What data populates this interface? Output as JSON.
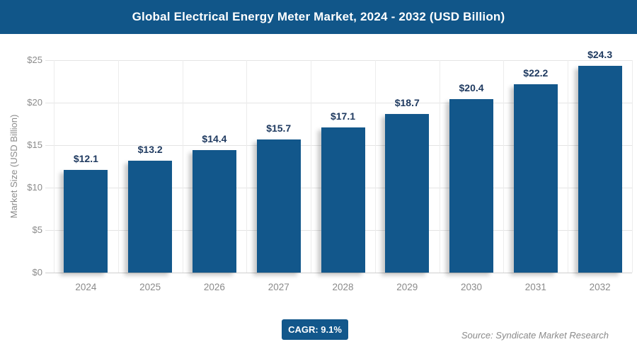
{
  "header": {
    "title": "Global Electrical Energy Meter Market, 2024 - 2032 (USD Billion)"
  },
  "chart_data": {
    "type": "bar",
    "title": "Global Electrical Energy Meter Market, 2024 - 2032 (USD Billion)",
    "categories": [
      "2024",
      "2025",
      "2026",
      "2027",
      "2028",
      "2029",
      "2030",
      "2031",
      "2032"
    ],
    "values": [
      12.1,
      13.2,
      14.4,
      15.7,
      17.1,
      18.7,
      20.4,
      22.2,
      24.3
    ],
    "value_labels": [
      "$12.1",
      "$13.2",
      "$14.4",
      "$15.7",
      "$17.1",
      "$18.7",
      "$20.4",
      "$22.2",
      "$24.3"
    ],
    "xlabel": "",
    "ylabel": "Market Size (USD Billion)",
    "ylim": [
      0,
      25
    ],
    "ytick_step": 5,
    "ytick_labels": [
      "$0",
      "$5",
      "$10",
      "$15",
      "$20",
      "$25"
    ],
    "grid": true,
    "legend": "none",
    "bar_color": "#12578b",
    "value_label_color": "#1f3a60",
    "axis_text_color": "#8c8c8c"
  },
  "footer": {
    "cagr_label": "CAGR: 9.1%",
    "source": "Source: Syndicate Market Research"
  }
}
